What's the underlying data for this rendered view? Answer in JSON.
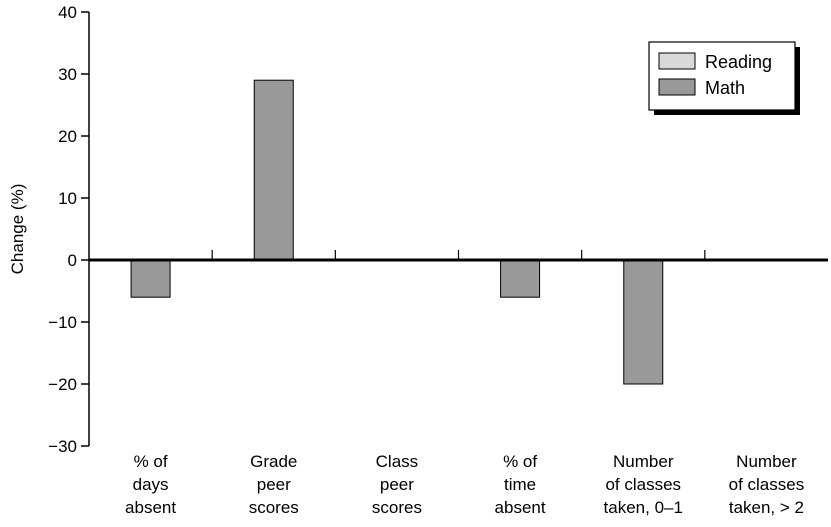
{
  "chart_data": {
    "type": "bar",
    "title": "",
    "xlabel": "",
    "ylabel": "Change (%)",
    "ylim": [
      -30,
      40
    ],
    "yticks": [
      {
        "value": 40,
        "label": "40"
      },
      {
        "value": 30,
        "label": "30"
      },
      {
        "value": 20,
        "label": "20"
      },
      {
        "value": 10,
        "label": "10"
      },
      {
        "value": 0,
        "label": "0"
      },
      {
        "value": -10,
        "label": "−10"
      },
      {
        "value": -20,
        "label": "−20"
      },
      {
        "value": -30,
        "label": "−30"
      }
    ],
    "grid": false,
    "legend_position": "top-right",
    "categories": [
      [
        "% of",
        "days",
        "absent"
      ],
      [
        "Grade",
        "peer",
        "scores"
      ],
      [
        "Class",
        "peer",
        "scores"
      ],
      [
        "% of",
        "time",
        "absent"
      ],
      [
        "Number",
        "of classes",
        "taken, 0–1"
      ],
      [
        "Number",
        "of classes",
        "taken, > 2"
      ]
    ],
    "series": [
      {
        "name": "Reading",
        "color": "#d9d9d9",
        "values": [
          0,
          0,
          0,
          0,
          0,
          0
        ]
      },
      {
        "name": "Math",
        "color": "#999999",
        "values": [
          -6,
          29,
          0,
          -6,
          -20,
          0
        ]
      }
    ]
  }
}
